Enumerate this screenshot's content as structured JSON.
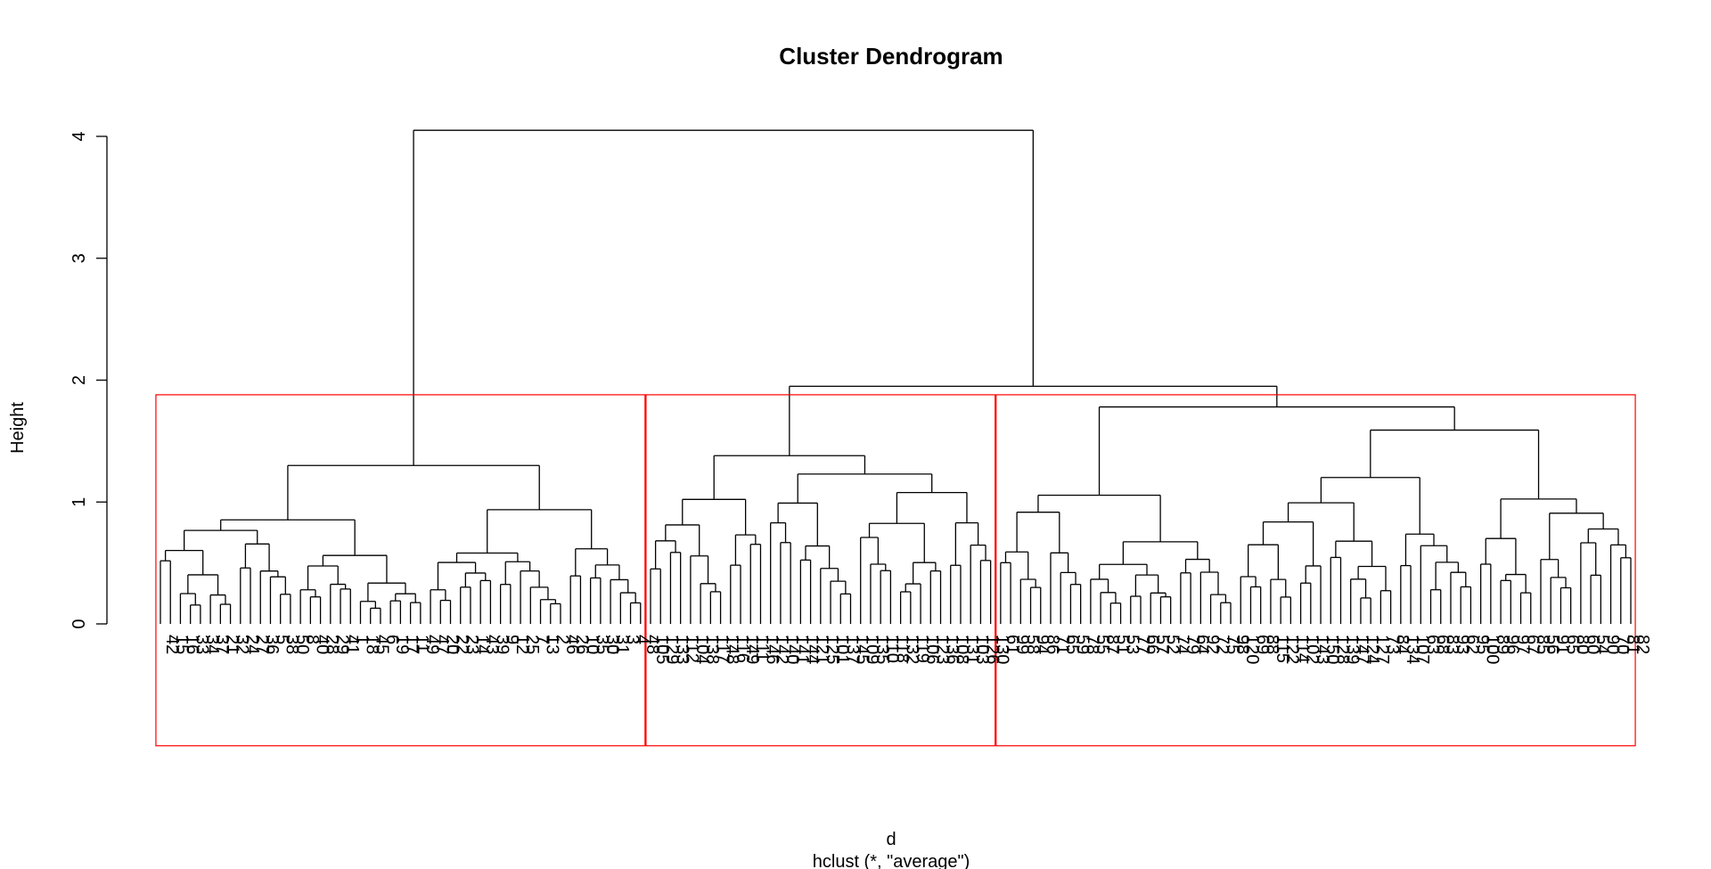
{
  "chart_data": {
    "type": "dendrogram",
    "title": "Cluster Dendrogram",
    "xlabel": "d",
    "sub": "hclust (*, \"average\")",
    "ylabel": "Height",
    "yticks": [
      0,
      1,
      2,
      3,
      4
    ],
    "ylim": [
      0,
      4.2
    ],
    "root_height": 4.05,
    "clusters": [
      {
        "name": "cluster-1",
        "height": 1.3,
        "leaves": [
          "42",
          "15",
          "16",
          "33",
          "34",
          "37",
          "21",
          "32",
          "24",
          "27",
          "36",
          "5",
          "38",
          "50",
          "8",
          "40",
          "28",
          "29",
          "41",
          "1",
          "18",
          "45",
          "6",
          "19",
          "17",
          "11",
          "49",
          "47",
          "20",
          "22",
          "23",
          "14",
          "43",
          "39",
          "9",
          "12",
          "25",
          "7",
          "13",
          "2",
          "46",
          "26",
          "10",
          "35",
          "30",
          "31",
          "3",
          "4",
          "48"
        ],
        "rect_height": 1.88
      },
      {
        "name": "cluster-2",
        "height": 1.38,
        "leaves": [
          "105",
          "129",
          "133",
          "112",
          "104",
          "138",
          "117",
          "148",
          "116",
          "149",
          "111",
          "146",
          "142",
          "140",
          "141",
          "144",
          "121",
          "125",
          "101",
          "137",
          "145",
          "109",
          "135",
          "110",
          "118",
          "132",
          "119",
          "106",
          "123",
          "136",
          "108",
          "131",
          "103",
          "126",
          "130"
        ],
        "rect_height": 1.88
      },
      {
        "name": "cluster-3",
        "height": 1.78,
        "leaves": [
          "61",
          "99",
          "58",
          "94",
          "86",
          "71",
          "65",
          "59",
          "78",
          "55",
          "87",
          "51",
          "53",
          "77",
          "66",
          "57",
          "52",
          "74",
          "79",
          "64",
          "92",
          "72",
          "75",
          "98",
          "120",
          "69",
          "88",
          "115",
          "122",
          "114",
          "102",
          "143",
          "150",
          "128",
          "139",
          "147",
          "124",
          "127",
          "73",
          "84",
          "134",
          "107",
          "63",
          "68",
          "83",
          "93",
          "62",
          "95",
          "100",
          "89",
          "96",
          "97",
          "67",
          "85",
          "56",
          "91",
          "65",
          "80",
          "60",
          "54",
          "90",
          "70",
          "81",
          "82"
        ],
        "rect_height": 1.88
      }
    ],
    "merges": {
      "cluster-2+cluster-3": 1.95
    }
  }
}
